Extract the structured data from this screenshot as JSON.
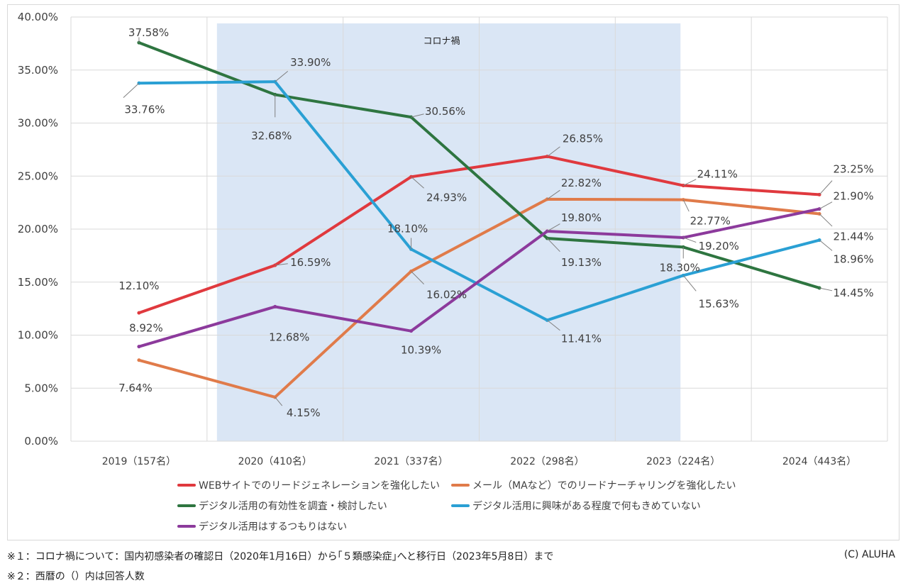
{
  "chart_data": {
    "type": "line",
    "title": "",
    "xlabel": "",
    "ylabel": "",
    "ylim": [
      0,
      40
    ],
    "y_ticks": [
      "0.00%",
      "5.00%",
      "10.00%",
      "15.00%",
      "20.00%",
      "25.00%",
      "30.00%",
      "35.00%",
      "40.00%"
    ],
    "grid": true,
    "categories": [
      "2019（157名）",
      "2020（410名）",
      "2021（337名）",
      "2022（298名）",
      "2023（224名）",
      "2024（443名）"
    ],
    "shaded_region": {
      "label": "コロナ禍",
      "from_category": "2020（410名）",
      "to_category": "2023（224名）",
      "color": "#dae6f5"
    },
    "series": [
      {
        "name": "WEBサイトでのリードジェネレーションを強化したい",
        "color": "#e0393e",
        "values": [
          12.1,
          16.59,
          24.93,
          26.85,
          24.11,
          23.25
        ],
        "labels": [
          "12.10%",
          "16.59%",
          "24.93%",
          "26.85%",
          "24.11%",
          "23.25%"
        ]
      },
      {
        "name": "メール（MAなど）でのリードナーチャリングを強化したい",
        "color": "#e07b4a",
        "values": [
          7.64,
          4.15,
          16.02,
          22.82,
          22.77,
          21.44
        ],
        "labels": [
          "7.64%",
          "4.15%",
          "16.02%",
          "22.82%",
          "22.77%",
          "21.44%"
        ]
      },
      {
        "name": "デジタル活用の有効性を調査・検討したい",
        "color": "#2e7540",
        "values": [
          37.58,
          32.68,
          30.56,
          19.13,
          18.3,
          14.45
        ],
        "labels": [
          "37.58%",
          "32.68%",
          "30.56%",
          "19.13%",
          "18.30%",
          "14.45%"
        ]
      },
      {
        "name": "デジタル活用に興味がある程度で何もきめていない",
        "color": "#2aa0d4",
        "values": [
          33.76,
          33.9,
          18.1,
          11.41,
          15.63,
          18.96
        ],
        "labels": [
          "33.76%",
          "33.90%",
          "18.10%",
          "11.41%",
          "15.63%",
          "18.96%"
        ]
      },
      {
        "name": "デジタル活用はするつもりはない",
        "color": "#8c3a9c",
        "values": [
          8.92,
          12.68,
          10.39,
          19.8,
          19.2,
          21.9
        ],
        "labels": [
          "8.92%",
          "12.68%",
          "10.39%",
          "19.80%",
          "19.20%",
          "21.90%"
        ]
      }
    ]
  },
  "footnotes": {
    "note1": "※１：コロナ禍について：国内初感染者の確認日（2020年1月16日）から｢５類感染症｣へと移行日（2023年5月8日）まで",
    "note2": "※２：西暦の（）内は回答人数",
    "copyright": "(C)  ALUHA"
  }
}
